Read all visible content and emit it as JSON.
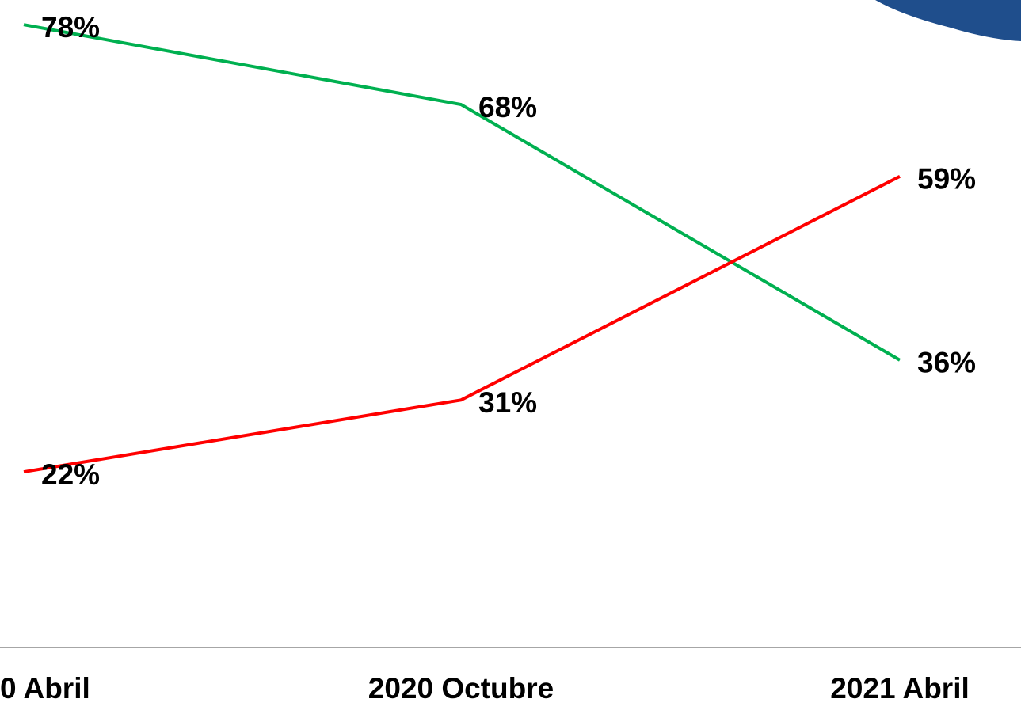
{
  "chart_data": {
    "type": "line",
    "categories": [
      "0 Abril",
      "2020 Octubre",
      "2021 Abril"
    ],
    "series": [
      {
        "color": "#00b050",
        "values": [
          78,
          68,
          36
        ],
        "value_labels": [
          "78%",
          "68%",
          "36%"
        ]
      },
      {
        "color": "#ff0000",
        "values": [
          22,
          31,
          59
        ],
        "value_labels": [
          "22%",
          "31%",
          "59%"
        ]
      }
    ],
    "ylim": [
      0,
      80
    ]
  }
}
